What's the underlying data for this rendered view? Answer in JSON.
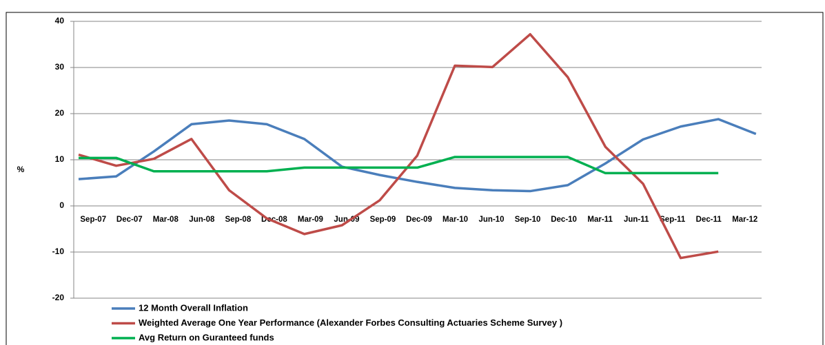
{
  "chart_data": {
    "type": "line",
    "y_label": "%",
    "categories": [
      "Sep-07",
      "Dec-07",
      "Mar-08",
      "Jun-08",
      "Sep-08",
      "Dec-08",
      "Mar-09",
      "Jun-09",
      "Sep-09",
      "Dec-09",
      "Mar-10",
      "Jun-10",
      "Sep-10",
      "Dec-10",
      "Mar-11",
      "Jun-11",
      "Sep-11",
      "Dec-11",
      "Mar-12",
      null,
      null
    ],
    "series": [
      {
        "name": "12 Month Overall Inflation",
        "color": "#4a7ebb",
        "values": [
          5.8,
          6.4,
          11.8,
          17.7,
          18.5,
          17.7,
          14.5,
          8.5,
          6.7,
          5.2,
          3.9,
          3.4,
          3.2,
          4.5,
          9.2,
          14.4,
          17.2,
          18.8,
          15.6,
          null,
          null
        ]
      },
      {
        "name": "Weighted Average One Year Performance (Alexander Forbes Consulting Actuaries Scheme Survey )",
        "color": "#be4b48",
        "values": [
          11.1,
          8.7,
          10.2,
          14.5,
          3.4,
          -2.7,
          -6.1,
          -4.2,
          1.2,
          10.9,
          30.4,
          30.1,
          37.2,
          27.9,
          12.8,
          4.8,
          -11.3,
          -9.9,
          null,
          null,
          null
        ]
      },
      {
        "name": "Avg Return on Guranteed funds",
        "color": "#00b050",
        "values": [
          10.4,
          10.4,
          7.5,
          7.5,
          7.5,
          7.5,
          8.3,
          8.3,
          8.3,
          8.3,
          10.6,
          10.6,
          10.6,
          10.6,
          7.1,
          7.1,
          7.1,
          7.1,
          null,
          null,
          null
        ]
      }
    ],
    "ylim": [
      -20,
      40
    ],
    "yticks": [
      -20,
      -10,
      0,
      10,
      20,
      30,
      40
    ],
    "grid": true
  }
}
